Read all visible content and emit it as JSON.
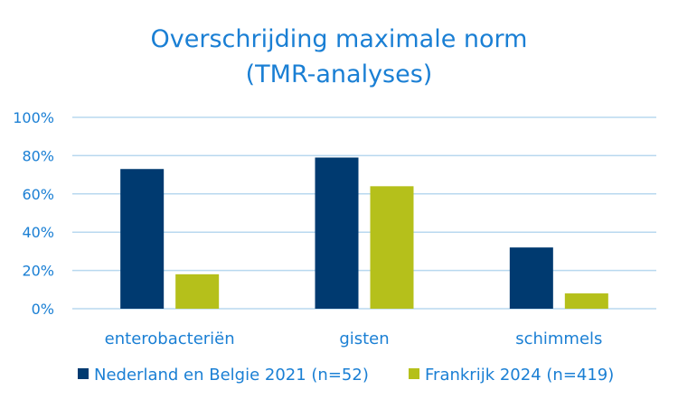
{
  "colors": {
    "text": "#1a7fd4",
    "grid": "#b8d8ef",
    "series_1": "#003a70",
    "series_2": "#b5c01b"
  },
  "chart_data": {
    "type": "bar",
    "title": "Overschrijding maximale norm",
    "subtitle": "(TMR-analyses)",
    "categories": [
      "enterobacteriën",
      "gisten",
      "schimmels"
    ],
    "series": [
      {
        "name": "Nederland en Belgie 2021 (n=52)",
        "values": [
          73,
          79,
          32
        ]
      },
      {
        "name": "Frankrijk 2024 (n=419)",
        "values": [
          18,
          64,
          8
        ]
      }
    ],
    "y_ticks": [
      "0%",
      "20%",
      "40%",
      "60%",
      "80%",
      "100%"
    ],
    "ylim": [
      0,
      100
    ],
    "xlabel": "",
    "ylabel": "",
    "grid": true,
    "legend_position": "bottom"
  }
}
